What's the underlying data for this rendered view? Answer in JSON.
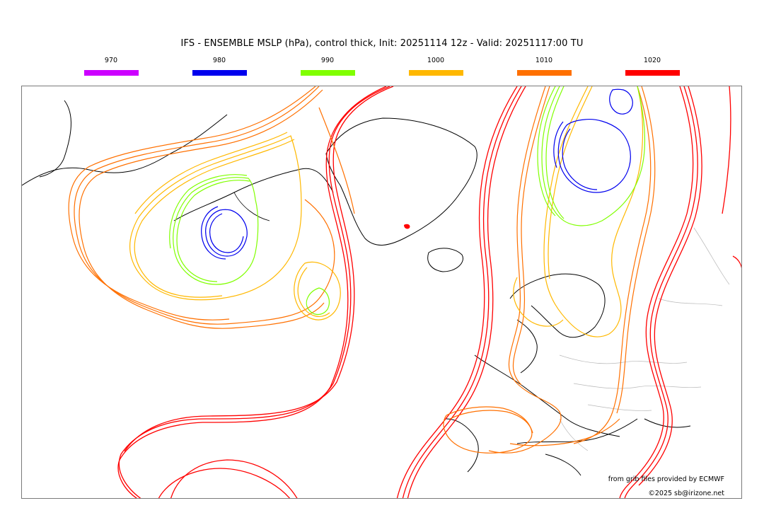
{
  "title": "IFS - ENSEMBLE MSLP (hPa), control thick, Init: 20251114 12z - Valid: 20251117:00 TU",
  "legend": [
    {
      "label": "970",
      "color": "#cc00ff"
    },
    {
      "label": "980",
      "color": "#0000ee"
    },
    {
      "label": "990",
      "color": "#80ff00"
    },
    {
      "label": "1000",
      "color": "#ffb800"
    },
    {
      "label": "1010",
      "color": "#ff7000"
    },
    {
      "label": "1020",
      "color": "#ff0000"
    }
  ],
  "credits": {
    "source": "from grib files provided by ECMWF",
    "copyright": "©2025 sb@irizone.net"
  }
}
